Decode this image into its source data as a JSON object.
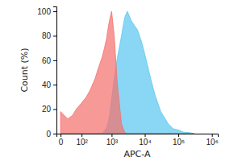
{
  "chart_data": {
    "type": "area",
    "x_label": "APC-A",
    "y_label": "Count (%)",
    "log": "x",
    "x": [
      0,
      20,
      40,
      60,
      100,
      150,
      200,
      300,
      400,
      500,
      600,
      700,
      800,
      900,
      1000,
      1200,
      1500,
      2000,
      2500,
      3000,
      4000,
      5000,
      6000,
      8000,
      10000,
      15000,
      20000,
      30000,
      50000,
      70000,
      100000,
      150000,
      200000,
      300000
    ],
    "series": [
      {
        "color": "#5bc8f0",
        "values": [
          0,
          0,
          0,
          0,
          0,
          0,
          0,
          0,
          0,
          0,
          2,
          5,
          10,
          18,
          28,
          45,
          62,
          80,
          95,
          100,
          92,
          88,
          85,
          75,
          65,
          45,
          32,
          18,
          8,
          4,
          3,
          1,
          1,
          0
        ]
      },
      {
        "color": "#f4716e",
        "values": [
          18,
          12,
          15,
          20,
          25,
          30,
          35,
          45,
          55,
          62,
          70,
          78,
          88,
          95,
          100,
          80,
          40,
          8,
          1,
          0,
          0,
          0,
          0,
          0,
          0,
          0,
          0,
          0,
          0,
          0,
          0,
          0,
          0,
          0
        ]
      }
    ],
    "xlim": [
      -10,
      1500000
    ],
    "xticks": [
      0,
      {
        "value": 100,
        "label": "10²"
      },
      {
        "value": 1000,
        "label": "10³"
      },
      {
        "value": 10000,
        "label": "10⁴"
      },
      {
        "value": 100000,
        "label": "10⁵"
      },
      {
        "value": 1000000,
        "label": "10⁶"
      }
    ],
    "ylim": [
      0,
      104
    ],
    "yticks": [
      0,
      20,
      40,
      60,
      80,
      100
    ]
  }
}
